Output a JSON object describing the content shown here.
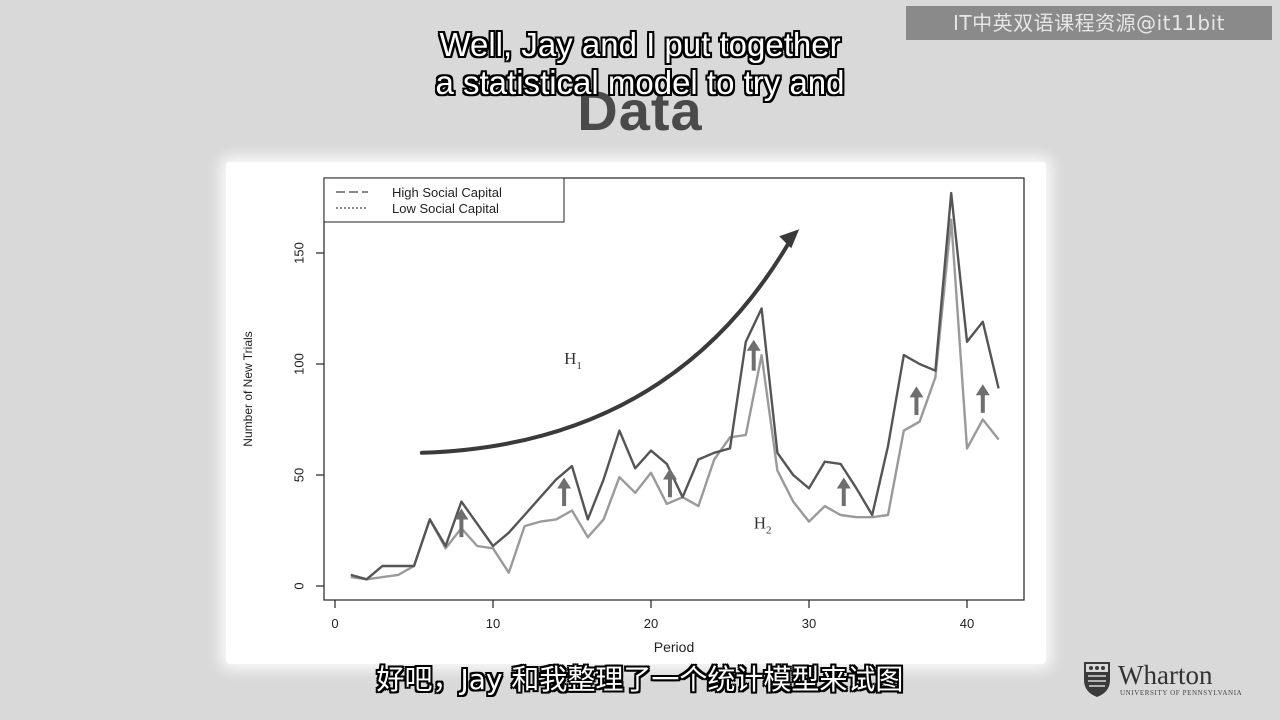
{
  "watermark": "IT中英双语课程资源@it11bit",
  "slide": {
    "title": "Data"
  },
  "subtitles": {
    "en_line1": "Well, Jay and I put together",
    "en_line2": "a statistical model to try and",
    "zh": "好吧，Jay 和我整理了一个统计模型来试图"
  },
  "logo": {
    "name": "Wharton",
    "subtitle": "UNIVERSITY OF PENNSYLVANIA",
    "icon": "penn-shield-icon"
  },
  "colors": {
    "high": "#555555",
    "low": "#9a9a9a",
    "arrow": "#6e6e6e",
    "curve": "#3a3a3a"
  },
  "chart_data": {
    "type": "line",
    "xlabel": "Period",
    "ylabel": "Number of New Trials",
    "xlim": [
      0,
      42
    ],
    "ylim": [
      0,
      180
    ],
    "xticks": [
      0,
      10,
      20,
      30,
      40
    ],
    "yticks": [
      0,
      50,
      100,
      150
    ],
    "legend_position": "top-left",
    "x": [
      1,
      2,
      3,
      4,
      5,
      6,
      7,
      8,
      9,
      10,
      11,
      12,
      13,
      14,
      15,
      16,
      17,
      18,
      19,
      20,
      21,
      22,
      23,
      24,
      25,
      26,
      27,
      28,
      29,
      30,
      31,
      32,
      33,
      34,
      35,
      36,
      37,
      38,
      39,
      40,
      41,
      42
    ],
    "series": [
      {
        "name": "High Social Capital",
        "style": "dashed",
        "values": [
          5,
          3,
          9,
          9,
          9,
          30,
          18,
          38,
          28,
          18,
          24,
          32,
          40,
          48,
          54,
          30,
          48,
          70,
          53,
          61,
          55,
          40,
          57,
          60,
          62,
          110,
          125,
          60,
          50,
          44,
          56,
          55,
          44,
          32,
          63,
          104,
          100,
          97,
          177,
          110,
          119,
          89
        ]
      },
      {
        "name": "Low Social Capital",
        "style": "dotted",
        "values": [
          4,
          3,
          4,
          5,
          9,
          30,
          17,
          26,
          18,
          17,
          6,
          27,
          29,
          30,
          34,
          22,
          30,
          49,
          42,
          51,
          37,
          40,
          36,
          57,
          67,
          68,
          104,
          52,
          38,
          29,
          36,
          32,
          31,
          31,
          32,
          70,
          74,
          94,
          165,
          62,
          75,
          66
        ]
      }
    ],
    "annotations": {
      "h1": {
        "label": "H",
        "sub": "1",
        "x": 14.5,
        "y": 100
      },
      "h2": {
        "label": "H",
        "sub": "2",
        "x": 26.5,
        "y": 26
      },
      "trend_curve": {
        "from": [
          5.5,
          60
        ],
        "to": [
          29,
          158
        ]
      },
      "up_arrows": [
        [
          8,
          22,
          34
        ],
        [
          14.5,
          36,
          48
        ],
        [
          21.2,
          40,
          52
        ],
        [
          26.5,
          97,
          110
        ],
        [
          32.2,
          36,
          48
        ],
        [
          36.8,
          77,
          89
        ],
        [
          41,
          78,
          90
        ]
      ]
    }
  }
}
